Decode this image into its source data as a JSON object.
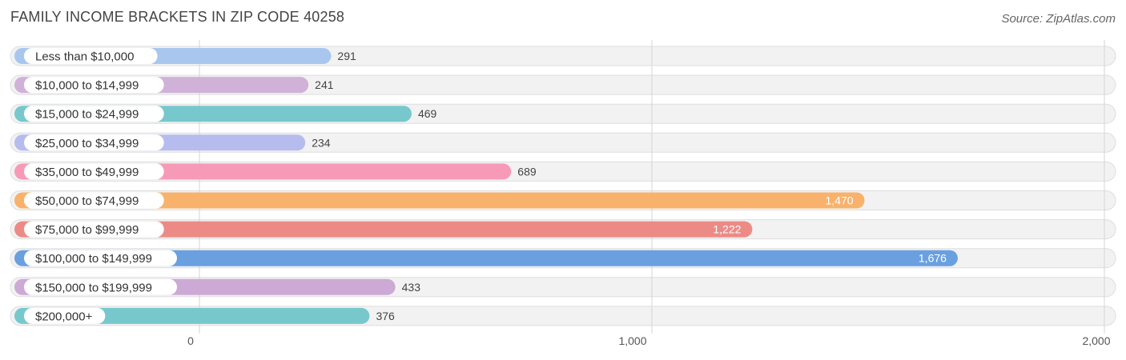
{
  "header": {
    "title": "FAMILY INCOME BRACKETS IN ZIP CODE 40258",
    "source": "Source: ZipAtlas.com"
  },
  "chart_data": {
    "type": "bar",
    "orientation": "horizontal",
    "title": "FAMILY INCOME BRACKETS IN ZIP CODE 40258",
    "xlabel": "",
    "ylabel": "",
    "xlim": [
      0,
      2000
    ],
    "x_ticks": [
      0,
      1000,
      2000
    ],
    "x_tick_labels": [
      "0",
      "1,000",
      "2,000"
    ],
    "grid": true,
    "legend": "none",
    "categories": [
      "Less than $10,000",
      "$10,000 to $14,999",
      "$15,000 to $24,999",
      "$25,000 to $34,999",
      "$35,000 to $49,999",
      "$50,000 to $74,999",
      "$75,000 to $99,999",
      "$100,000 to $149,999",
      "$150,000 to $199,999",
      "$200,000+"
    ],
    "values": [
      291,
      241,
      469,
      234,
      689,
      1470,
      1222,
      1676,
      433,
      376
    ],
    "value_labels": [
      "291",
      "241",
      "469",
      "234",
      "689",
      "1,470",
      "1,222",
      "1,676",
      "433",
      "376"
    ],
    "colors": [
      "#a9c6ef",
      "#d0b1d8",
      "#77c8cc",
      "#b7bcee",
      "#f79ab8",
      "#f8b26c",
      "#ec8b86",
      "#6aa0e0",
      "#cda9d5",
      "#77c8cc"
    ]
  }
}
